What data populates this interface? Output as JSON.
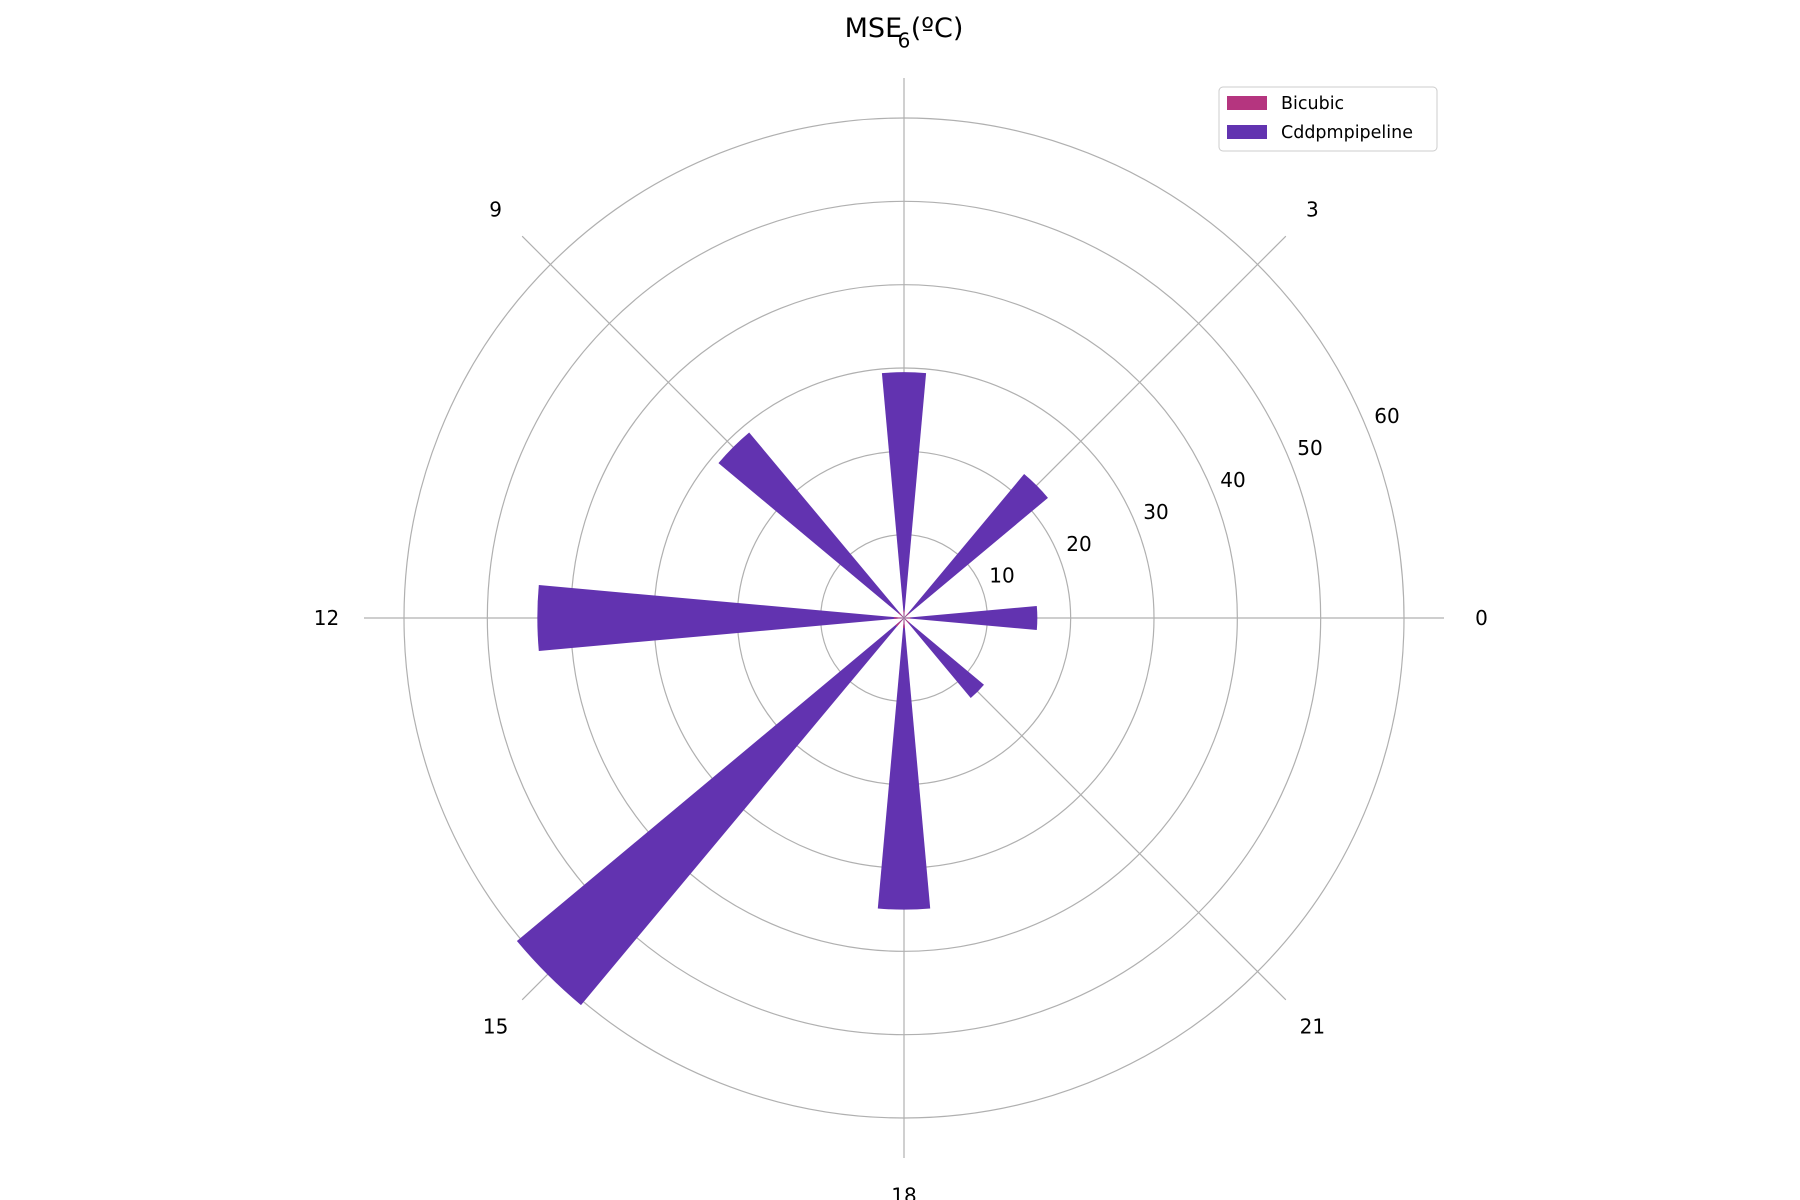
{
  "chart_data": {
    "type": "bar",
    "subtype": "polar",
    "title": "MSE (ºC)",
    "categories": [
      "0",
      "3",
      "6",
      "9",
      "12",
      "15",
      "18",
      "21"
    ],
    "angular_ticks": [
      "0",
      "3",
      "6",
      "9",
      "12",
      "15",
      "18",
      "21"
    ],
    "radial_ticks": [
      "10",
      "20",
      "30",
      "40",
      "50",
      "60"
    ],
    "rlim": [
      0,
      60
    ],
    "grid": true,
    "legend_position": "top-right",
    "series": [
      {
        "name": "Bicubic",
        "color": "#b5357f",
        "values": [
          0.8,
          0.8,
          0.9,
          0.9,
          1.2,
          1.3,
          1.2,
          0.9
        ]
      },
      {
        "name": "Cddpmpipeline",
        "color": "#6233b0",
        "values": [
          16.0,
          22.5,
          29.5,
          29.0,
          44.0,
          60.5,
          35.0,
          12.5
        ]
      }
    ]
  }
}
